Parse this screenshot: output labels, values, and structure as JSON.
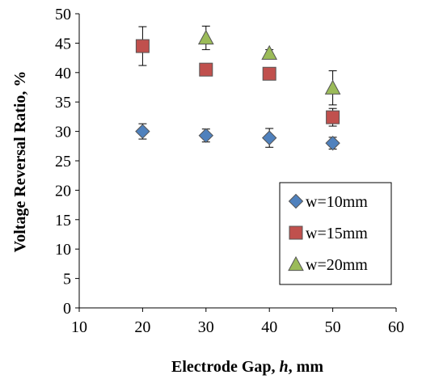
{
  "chart_data": {
    "type": "scatter",
    "xlabel_prefix": "Electrode Gap, ",
    "xlabel_var": "h",
    "xlabel_suffix": ", mm",
    "ylabel": "Voltage Reversal Ratio, %",
    "xlim": [
      10,
      60
    ],
    "ylim": [
      0,
      50
    ],
    "xticks": [
      10,
      20,
      30,
      40,
      50,
      60
    ],
    "yticks": [
      0,
      5,
      10,
      15,
      20,
      25,
      30,
      35,
      40,
      45,
      50
    ],
    "grid": false,
    "legend_position": "bottom-right",
    "series": [
      {
        "name": "w=10mm",
        "marker": "diamond",
        "color": "#4f81bd",
        "x": [
          20,
          30,
          40,
          50
        ],
        "y": [
          30.0,
          29.3,
          28.9,
          28.0
        ],
        "yerr": [
          1.3,
          1.1,
          1.6,
          1.0
        ]
      },
      {
        "name": "w=15mm",
        "marker": "square",
        "color": "#c0504d",
        "x": [
          20,
          30,
          40,
          50
        ],
        "y": [
          44.5,
          40.5,
          39.8,
          32.4
        ],
        "yerr": [
          3.3,
          0.8,
          0.9,
          1.5
        ]
      },
      {
        "name": "w=20mm",
        "marker": "triangle",
        "color": "#9bbb59",
        "x": [
          30,
          40,
          50
        ],
        "y": [
          45.9,
          43.3,
          37.4
        ],
        "yerr": [
          2.0,
          0.6,
          2.9
        ]
      }
    ]
  }
}
